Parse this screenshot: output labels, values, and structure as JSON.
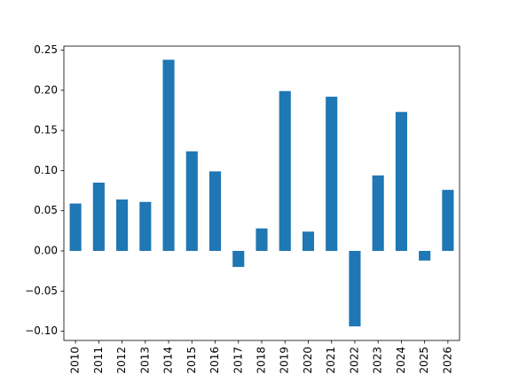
{
  "chart_data": {
    "type": "bar",
    "categories": [
      "2010",
      "2011",
      "2012",
      "2013",
      "2014",
      "2015",
      "2016",
      "2017",
      "2018",
      "2019",
      "2020",
      "2021",
      "2022",
      "2023",
      "2024",
      "2025",
      "2026"
    ],
    "values": [
      0.059,
      0.085,
      0.064,
      0.061,
      0.238,
      0.124,
      0.099,
      -0.02,
      0.028,
      0.199,
      0.024,
      0.192,
      -0.094,
      0.094,
      0.173,
      -0.012,
      0.076
    ],
    "color": "#1f77b4",
    "ylim": [
      -0.1115,
      0.255
    ],
    "yticks": [
      {
        "value": -0.1,
        "label": "−0.10"
      },
      {
        "value": -0.05,
        "label": "−0.05"
      },
      {
        "value": 0,
        "label": "0.00"
      },
      {
        "value": 0.05,
        "label": "0.05"
      },
      {
        "value": 0.1,
        "label": "0.10"
      },
      {
        "value": 0.15,
        "label": "0.15"
      },
      {
        "value": 0.2,
        "label": "0.20"
      },
      {
        "value": 0.25,
        "label": "0.25"
      }
    ]
  }
}
